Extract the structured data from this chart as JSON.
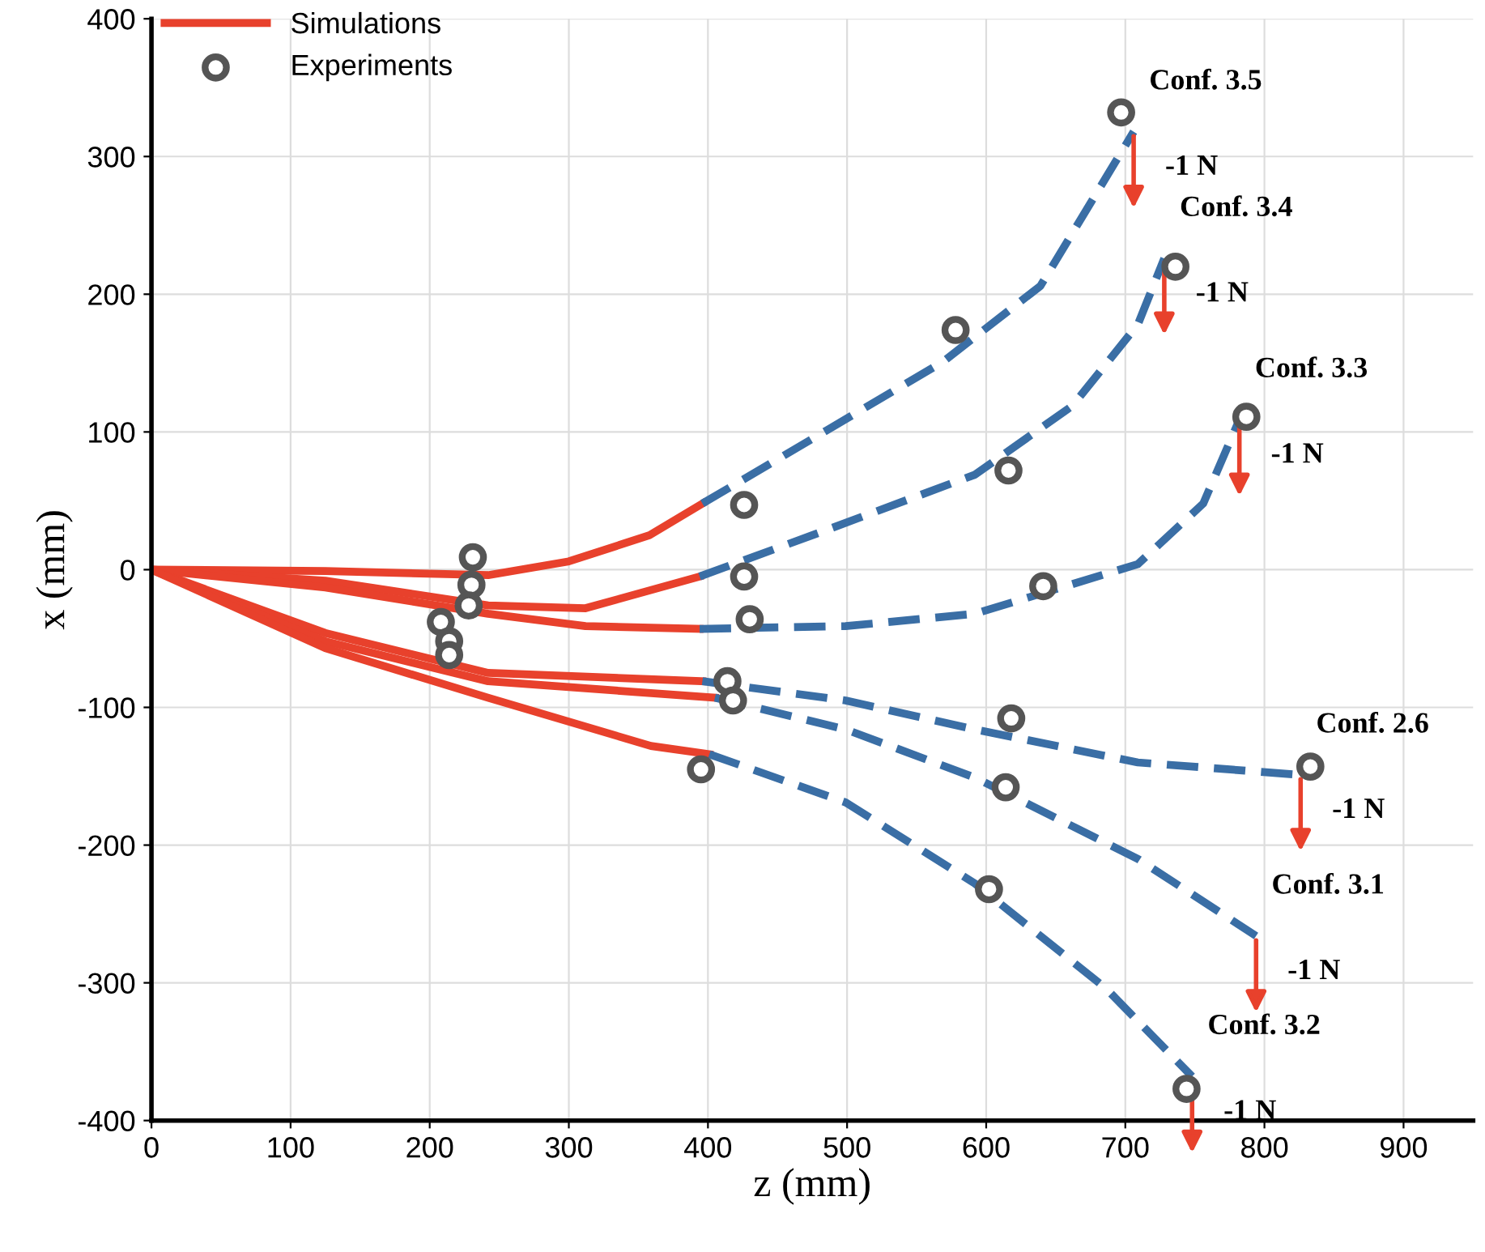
{
  "chart_data": {
    "type": "line",
    "xlabel": "z (mm)",
    "ylabel": "x (mm)",
    "xlim": [
      0,
      950
    ],
    "ylim": [
      -400,
      400
    ],
    "xticks": [
      0,
      100,
      200,
      300,
      400,
      500,
      600,
      700,
      800,
      900
    ],
    "yticks": [
      -400,
      -300,
      -200,
      -100,
      0,
      100,
      200,
      300,
      400
    ],
    "grid": true,
    "legend": "top left",
    "series": [
      {
        "name": "Simulations",
        "type": "line",
        "line_style": "solid",
        "color": "#e8412c",
        "x": [
          0,
          125,
          242,
          300,
          358,
          396
        ],
        "values": [
          0,
          -1,
          -4,
          6,
          25,
          48
        ]
      },
      {
        "type": "line",
        "line_style": "solid",
        "color": "#e8412c",
        "x": [
          0,
          125,
          242,
          312,
          394
        ],
        "values": [
          0,
          -8,
          -26,
          -28,
          -5
        ]
      },
      {
        "type": "line",
        "line_style": "solid",
        "color": "#e8412c",
        "x": [
          0,
          125,
          242,
          312,
          394
        ],
        "values": [
          0,
          -13,
          -32,
          -41,
          -43
        ]
      },
      {
        "type": "line",
        "line_style": "solid",
        "color": "#e8412c",
        "x": [
          0,
          125,
          242,
          396
        ],
        "values": [
          0,
          -46,
          -75,
          -81
        ]
      },
      {
        "type": "line",
        "line_style": "solid",
        "color": "#e8412c",
        "x": [
          0,
          125,
          242,
          405
        ],
        "values": [
          0,
          -52,
          -81,
          -93
        ]
      },
      {
        "type": "line",
        "line_style": "solid",
        "color": "#e8412c",
        "x": [
          0,
          125,
          242,
          359,
          401
        ],
        "values": [
          0,
          -57,
          -93,
          -128,
          -134
        ]
      },
      {
        "type": "line",
        "line_style": "dashed",
        "color": "#3a6ea5",
        "x": [
          396,
          475,
          569,
          639,
          706
        ],
        "values": [
          48,
          95,
          151,
          206,
          318
        ]
      },
      {
        "type": "line",
        "line_style": "dashed",
        "color": "#3a6ea5",
        "x": [
          394,
          475,
          592,
          662,
          709,
          728
        ],
        "values": [
          -5,
          25,
          69,
          119,
          178,
          226
        ]
      },
      {
        "type": "line",
        "line_style": "dashed",
        "color": "#3a6ea5",
        "x": [
          394,
          499,
          592,
          709,
          756,
          782
        ],
        "values": [
          -43,
          -41,
          -32,
          4,
          48,
          109
        ]
      },
      {
        "type": "line",
        "line_style": "dashed",
        "color": "#3a6ea5",
        "x": [
          396,
          499,
          592,
          709,
          826
        ],
        "values": [
          -81,
          -95,
          -116,
          -140,
          -149
        ]
      },
      {
        "type": "line",
        "line_style": "dashed",
        "color": "#3a6ea5",
        "x": [
          405,
          499,
          592,
          709,
          794
        ],
        "values": [
          -93,
          -116,
          -151,
          -210,
          -266
        ]
      },
      {
        "type": "line",
        "line_style": "dashed",
        "color": "#3a6ea5",
        "x": [
          401,
          499,
          592,
          686,
          748
        ],
        "values": [
          -134,
          -169,
          -228,
          -304,
          -368
        ]
      },
      {
        "name": "Experiments",
        "type": "scatter",
        "marker": "circle",
        "color": "#555555",
        "x": [
          697,
          578,
          426,
          231,
          230,
          228,
          208,
          214,
          214,
          736,
          616,
          426,
          787,
          641,
          430,
          414,
          418,
          833,
          618,
          614,
          395,
          602,
          744
        ],
        "values": [
          332,
          174,
          47,
          9,
          -11,
          -26,
          -38,
          -52,
          -62,
          220,
          72,
          -5,
          111,
          -12,
          -36,
          -81,
          -95,
          -143,
          -108,
          -158,
          -145,
          -232,
          -377
        ]
      }
    ],
    "annotations": [
      {
        "text": "Conf. 3.5",
        "x": 706,
        "y": 318
      },
      {
        "text": "Conf. 3.4",
        "x": 728,
        "y": 226
      },
      {
        "text": "Conf. 3.3",
        "x": 782,
        "y": 109
      },
      {
        "text": "Conf. 2.6",
        "x": 826,
        "y": -149
      },
      {
        "text": "Conf. 3.1",
        "x": 794,
        "y": -266
      },
      {
        "text": "Conf. 3.2",
        "x": 748,
        "y": -368
      },
      {
        "text": "-1 N",
        "x": 706,
        "y": 318
      },
      {
        "text": "-1 N",
        "x": 728,
        "y": 226
      },
      {
        "text": "-1 N",
        "x": 782,
        "y": 109
      },
      {
        "text": "-1 N",
        "x": 826,
        "y": -149
      },
      {
        "text": "-1 N",
        "x": 794,
        "y": -266
      },
      {
        "text": "-1 N",
        "x": 748,
        "y": -368
      }
    ]
  }
}
